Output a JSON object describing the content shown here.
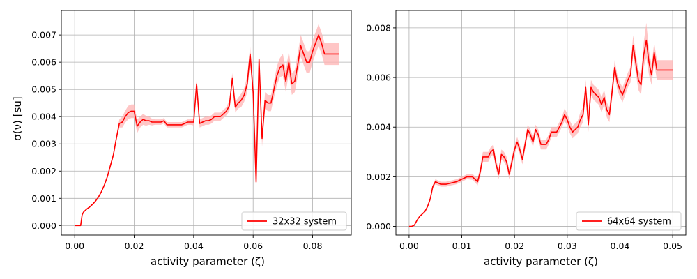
{
  "chart_data": [
    {
      "type": "line",
      "ylabel": "σ(ν) [su]",
      "xlabel": "activity parameter (ζ)",
      "xlim": [
        -0.0045,
        0.093
      ],
      "ylim": [
        -0.00035,
        0.0079
      ],
      "x_ticks": [
        0.0,
        0.02,
        0.04,
        0.06,
        0.08
      ],
      "x_tick_labels": [
        "0.00",
        "0.02",
        "0.04",
        "0.06",
        "0.08"
      ],
      "y_ticks": [
        0.0,
        0.001,
        0.002,
        0.003,
        0.004,
        0.005,
        0.006,
        0.007
      ],
      "y_tick_labels": [
        "0.000",
        "0.001",
        "0.002",
        "0.003",
        "0.004",
        "0.005",
        "0.006",
        "0.007"
      ],
      "grid": true,
      "legend_position": "lower-right",
      "series": [
        {
          "name": "32x32 system",
          "color": "#ff0000",
          "band_color": "#ffb3b3",
          "x": [
            0.0,
            0.001,
            0.002,
            0.0025,
            0.003,
            0.0035,
            0.004,
            0.005,
            0.006,
            0.007,
            0.008,
            0.009,
            0.01,
            0.011,
            0.012,
            0.013,
            0.014,
            0.015,
            0.016,
            0.017,
            0.018,
            0.019,
            0.02,
            0.021,
            0.022,
            0.023,
            0.024,
            0.025,
            0.026,
            0.027,
            0.028,
            0.029,
            0.03,
            0.031,
            0.032,
            0.033,
            0.034,
            0.035,
            0.036,
            0.037,
            0.038,
            0.039,
            0.04,
            0.041,
            0.042,
            0.043,
            0.044,
            0.045,
            0.046,
            0.047,
            0.048,
            0.049,
            0.05,
            0.051,
            0.052,
            0.053,
            0.054,
            0.055,
            0.056,
            0.057,
            0.058,
            0.059,
            0.06,
            0.061,
            0.062,
            0.063,
            0.064,
            0.065,
            0.066,
            0.067,
            0.068,
            0.069,
            0.07,
            0.071,
            0.072,
            0.073,
            0.074,
            0.075,
            0.076,
            0.077,
            0.078,
            0.079,
            0.08,
            0.081,
            0.082,
            0.083,
            0.084,
            0.085,
            0.086,
            0.087,
            0.088,
            0.089
          ],
          "y": [
            0.0,
            0.0,
            0.0,
            0.0004,
            0.0005,
            0.00055,
            0.0006,
            0.00068,
            0.00078,
            0.0009,
            0.00105,
            0.00125,
            0.0015,
            0.0018,
            0.0022,
            0.0026,
            0.0032,
            0.00375,
            0.0038,
            0.004,
            0.00415,
            0.0042,
            0.0042,
            0.00365,
            0.0038,
            0.0039,
            0.00385,
            0.00385,
            0.0038,
            0.0038,
            0.0038,
            0.0038,
            0.00385,
            0.0037,
            0.0037,
            0.0037,
            0.0037,
            0.0037,
            0.0037,
            0.00375,
            0.0038,
            0.0038,
            0.0038,
            0.0052,
            0.00375,
            0.0038,
            0.00385,
            0.00385,
            0.0039,
            0.004,
            0.004,
            0.004,
            0.0041,
            0.0042,
            0.0044,
            0.0054,
            0.00435,
            0.0045,
            0.0046,
            0.0048,
            0.0052,
            0.0063,
            0.0049,
            0.0016,
            0.0061,
            0.0032,
            0.0046,
            0.0045,
            0.0045,
            0.005,
            0.0055,
            0.0058,
            0.0059,
            0.0053,
            0.006,
            0.0052,
            0.0053,
            0.0059,
            0.0066,
            0.0063,
            0.006,
            0.006,
            0.0064,
            0.0067,
            0.007,
            0.0067,
            0.0063,
            0.0063,
            0.0063,
            0.0063,
            0.0063,
            0.0063
          ],
          "y_err": [
            0.0,
            0.0,
            0.0,
            2e-05,
            2e-05,
            2e-05,
            2e-05,
            3e-05,
            3e-05,
            3e-05,
            4e-05,
            4e-05,
            5e-05,
            6e-05,
            7e-05,
            8e-05,
            0.0001,
            0.00015,
            0.0002,
            0.00022,
            0.00025,
            0.00025,
            0.00025,
            0.00025,
            0.0002,
            0.0002,
            0.00018,
            0.00015,
            0.00012,
            0.0001,
            0.0001,
            0.0001,
            0.0001,
            0.0001,
            0.0001,
            0.0001,
            0.0001,
            0.0001,
            0.0001,
            0.0001,
            0.0001,
            0.0001,
            0.00012,
            0.00015,
            0.00015,
            0.00015,
            0.00015,
            0.00015,
            0.00015,
            0.00015,
            0.00015,
            0.00015,
            0.00015,
            0.00015,
            0.0002,
            0.0002,
            0.0002,
            0.0002,
            0.00025,
            0.00025,
            0.0003,
            0.0003,
            0.0003,
            0.0003,
            0.0003,
            0.0003,
            0.0003,
            0.0003,
            0.0003,
            0.0003,
            0.00035,
            0.00035,
            0.0004,
            0.0004,
            0.0004,
            0.0004,
            0.0004,
            0.0004,
            0.0004,
            0.0004,
            0.0004,
            0.0004,
            0.0004,
            0.0004,
            0.0004,
            0.0004,
            0.0004,
            0.0004,
            0.0004,
            0.0004,
            0.0004,
            0.0004
          ]
        }
      ]
    },
    {
      "type": "line",
      "xlabel": "activity parameter (ζ)",
      "xlim": [
        -0.0025,
        0.0525
      ],
      "ylim": [
        -0.00035,
        0.0087
      ],
      "x_ticks": [
        0.0,
        0.01,
        0.02,
        0.03,
        0.04,
        0.05
      ],
      "x_tick_labels": [
        "0.00",
        "0.01",
        "0.02",
        "0.03",
        "0.04",
        "0.05"
      ],
      "y_ticks": [
        0.0,
        0.002,
        0.004,
        0.006,
        0.008
      ],
      "y_tick_labels": [
        "0.000",
        "0.002",
        "0.004",
        "0.006",
        "0.008"
      ],
      "grid": true,
      "legend_position": "lower-right",
      "series": [
        {
          "name": "64x64 system",
          "color": "#ff0000",
          "band_color": "#ffb3b3",
          "x": [
            0.0,
            0.0005,
            0.001,
            0.0015,
            0.002,
            0.0025,
            0.003,
            0.0035,
            0.004,
            0.0045,
            0.005,
            0.006,
            0.007,
            0.008,
            0.009,
            0.01,
            0.011,
            0.012,
            0.0125,
            0.013,
            0.0135,
            0.014,
            0.0145,
            0.015,
            0.0155,
            0.016,
            0.0165,
            0.017,
            0.0175,
            0.018,
            0.0185,
            0.019,
            0.0195,
            0.02,
            0.0205,
            0.021,
            0.0215,
            0.022,
            0.0225,
            0.023,
            0.0235,
            0.024,
            0.0245,
            0.025,
            0.0255,
            0.026,
            0.0265,
            0.027,
            0.0275,
            0.028,
            0.0285,
            0.029,
            0.0295,
            0.03,
            0.0305,
            0.031,
            0.0315,
            0.032,
            0.0325,
            0.033,
            0.0335,
            0.034,
            0.0345,
            0.035,
            0.0355,
            0.036,
            0.0365,
            0.037,
            0.0375,
            0.038,
            0.0385,
            0.039,
            0.0395,
            0.04,
            0.0405,
            0.041,
            0.0415,
            0.042,
            0.0425,
            0.043,
            0.0435,
            0.044,
            0.0445,
            0.045,
            0.0455,
            0.046,
            0.0465,
            0.047,
            0.0475,
            0.048,
            0.0485,
            0.049,
            0.0495,
            0.05
          ],
          "y": [
            0.0,
            0.0,
            5e-05,
            0.00025,
            0.0004,
            0.0005,
            0.0006,
            0.0008,
            0.0011,
            0.0016,
            0.0018,
            0.0017,
            0.0017,
            0.00175,
            0.0018,
            0.0019,
            0.002,
            0.002,
            0.0019,
            0.0018,
            0.0022,
            0.0028,
            0.0028,
            0.0028,
            0.003,
            0.0031,
            0.0025,
            0.0021,
            0.0029,
            0.0028,
            0.0026,
            0.0021,
            0.0026,
            0.0031,
            0.0034,
            0.0031,
            0.0027,
            0.0033,
            0.0039,
            0.0037,
            0.0034,
            0.0039,
            0.0037,
            0.0033,
            0.0033,
            0.0033,
            0.0035,
            0.0038,
            0.0038,
            0.0038,
            0.004,
            0.0042,
            0.0045,
            0.0043,
            0.004,
            0.0038,
            0.0039,
            0.004,
            0.0043,
            0.0045,
            0.0056,
            0.0041,
            0.0056,
            0.0054,
            0.0053,
            0.0052,
            0.0049,
            0.0052,
            0.0047,
            0.0045,
            0.0054,
            0.0064,
            0.0058,
            0.0055,
            0.0053,
            0.0056,
            0.0059,
            0.0061,
            0.0073,
            0.0066,
            0.0059,
            0.0057,
            0.0069,
            0.0075,
            0.0066,
            0.0061,
            0.007,
            0.0063,
            0.0063,
            0.0063,
            0.0063,
            0.0063,
            0.0063,
            0.0063
          ],
          "y_err": [
            0.0,
            0.0,
            2e-05,
            2e-05,
            3e-05,
            3e-05,
            4e-05,
            5e-05,
            6e-05,
            8e-05,
            0.0001,
            0.0001,
            0.0001,
            0.0001,
            0.0001,
            0.0001,
            0.0001,
            0.00012,
            0.00012,
            0.00015,
            0.0002,
            0.0002,
            0.0002,
            0.0002,
            0.0002,
            0.0002,
            0.0002,
            0.0002,
            0.0002,
            0.0002,
            0.0002,
            0.0002,
            0.0002,
            0.0002,
            0.0002,
            0.0002,
            0.0002,
            0.0002,
            0.0002,
            0.0002,
            0.0002,
            0.0002,
            0.0002,
            0.0002,
            0.0002,
            0.0002,
            0.0002,
            0.0002,
            0.0002,
            0.0002,
            0.0002,
            0.0002,
            0.00025,
            0.00025,
            0.00025,
            0.00025,
            0.00025,
            0.00025,
            0.0003,
            0.0003,
            0.0003,
            0.0003,
            0.0003,
            0.0003,
            0.0003,
            0.0003,
            0.0003,
            0.0003,
            0.0003,
            0.0003,
            0.0003,
            0.0003,
            0.0003,
            0.0003,
            0.0003,
            0.0003,
            0.0003,
            0.0003,
            0.0004,
            0.0004,
            0.0004,
            0.0004,
            0.0005,
            0.0007,
            0.0005,
            0.0004,
            0.0004,
            0.0004,
            0.0004,
            0.0004,
            0.0004,
            0.0004,
            0.0004,
            0.0004
          ]
        }
      ]
    }
  ]
}
